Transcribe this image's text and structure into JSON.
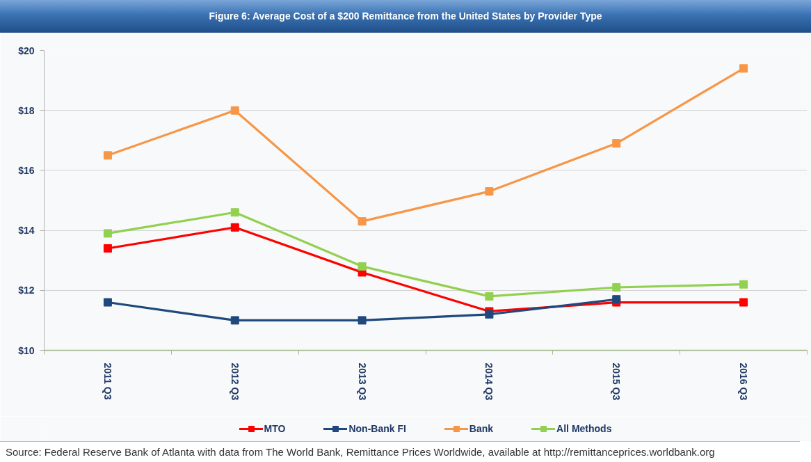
{
  "chart_data": {
    "type": "line",
    "title": "Figure 6: Average Cost of a $200 Remittance from the United States by Provider Type",
    "categories": [
      "2011 Q3",
      "2012 Q3",
      "2013 Q3",
      "2014 Q3",
      "2015 Q3",
      "2016 Q3"
    ],
    "series": [
      {
        "name": "MTO",
        "color": "#ff0000",
        "values": [
          13.4,
          14.1,
          12.6,
          11.3,
          11.6,
          11.6
        ]
      },
      {
        "name": "Non-Bank FI",
        "color": "#1f497d",
        "values": [
          11.6,
          11.0,
          11.0,
          11.2,
          11.7,
          null
        ]
      },
      {
        "name": "Bank",
        "color": "#f79646",
        "values": [
          16.5,
          18.0,
          14.3,
          15.3,
          16.9,
          19.4
        ]
      },
      {
        "name": "All Methods",
        "color": "#92d050",
        "values": [
          13.9,
          14.6,
          12.8,
          11.8,
          12.1,
          12.2
        ]
      }
    ],
    "ylim": [
      10,
      20
    ],
    "yticks": [
      {
        "value": 10,
        "label": "$10"
      },
      {
        "value": 12,
        "label": "$12"
      },
      {
        "value": 14,
        "label": "$14"
      },
      {
        "value": 16,
        "label": "$16"
      },
      {
        "value": 18,
        "label": "$18"
      },
      {
        "value": 20,
        "label": "$20"
      }
    ],
    "grid": "y",
    "legend": "bottom",
    "marker": "square",
    "line_style": "solid",
    "annotations": [
      "Source: Federal Reserve Bank of Atlanta with data from The World Bank, Remittance Prices Worldwide, available at http://remittanceprices.worldbank.org"
    ]
  }
}
